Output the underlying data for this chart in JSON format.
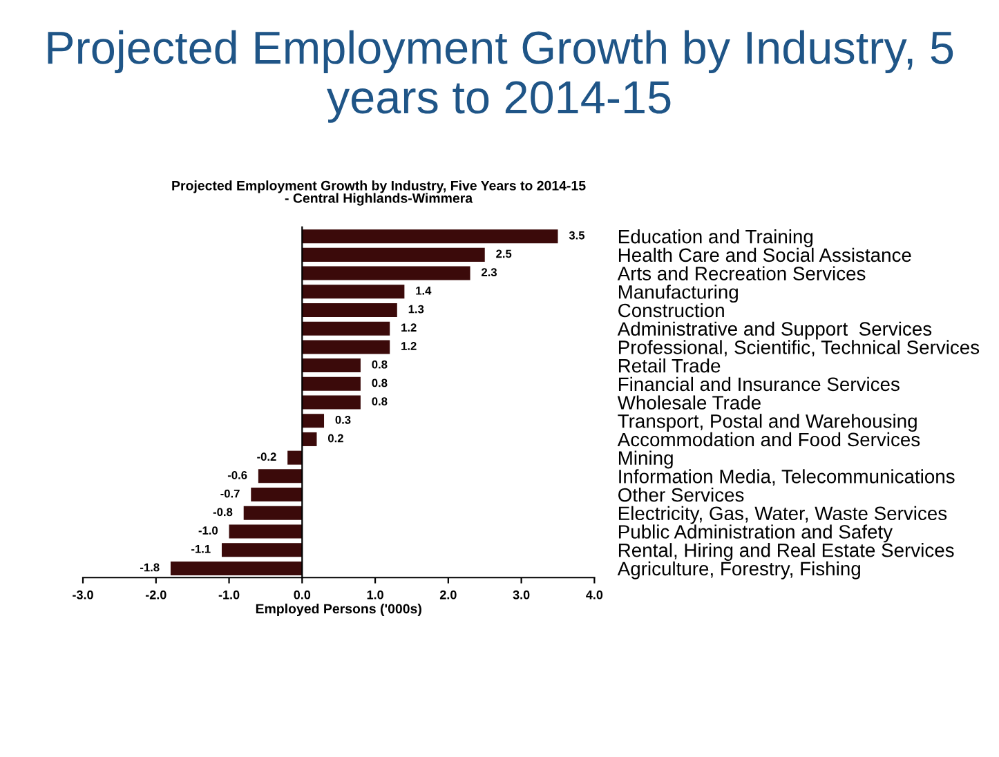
{
  "chart_data": {
    "type": "bar",
    "orientation": "horizontal",
    "title": "Projected Employment Growth by Industry, 5 years to 2014-15",
    "subtitle": "Projected Employment Growth by Industry, Five Years to 2014-15\n- Central Highlands-Wimmera",
    "xlabel": "Employed Persons ('000s)",
    "categories": [
      "Education and Training",
      "Health Care and Social Assistance",
      "Arts and Recreation Services",
      "Manufacturing",
      "Construction",
      "Administrative and Support  Services",
      "Professional, Scientific, Technical Services",
      "Retail Trade",
      "Financial and Insurance Services",
      "Wholesale Trade",
      "Transport, Postal and Warehousing",
      "Accommodation and Food Services",
      "Mining",
      "Information Media, Telecommunications",
      "Other Services",
      "Electricity, Gas, Water, Waste Services",
      "Public Administration and Safety",
      "Rental, Hiring and Real Estate Services",
      "Agriculture, Forestry, Fishing"
    ],
    "values": [
      3.5,
      2.5,
      2.3,
      1.4,
      1.3,
      1.2,
      1.2,
      0.8,
      0.8,
      0.8,
      0.3,
      0.2,
      -0.2,
      -0.6,
      -0.7,
      -0.8,
      -1.0,
      -1.1,
      -1.8
    ],
    "value_labels": [
      "3.5",
      "2.5",
      "2.3",
      "1.4",
      "1.3",
      "1.2",
      "1.2",
      "0.8",
      "0.8",
      "0.8",
      "0.3",
      "0.2",
      "-0.2",
      "-0.6",
      "-0.7",
      "-0.8",
      "-1.0",
      "-1.1",
      "-1.8"
    ],
    "color": "#3b0a0a",
    "xlim": [
      -3,
      4
    ],
    "xticks": [
      {
        "value": -3,
        "label": "-3.0"
      },
      {
        "value": -2,
        "label": "-2.0"
      },
      {
        "value": -1,
        "label": "-1.0"
      },
      {
        "value": 0,
        "label": "0.0"
      },
      {
        "value": 1,
        "label": "1.0"
      },
      {
        "value": 2,
        "label": "2.0"
      },
      {
        "value": 3,
        "label": "3.0"
      },
      {
        "value": 4,
        "label": "4.0"
      }
    ],
    "legend": false
  }
}
